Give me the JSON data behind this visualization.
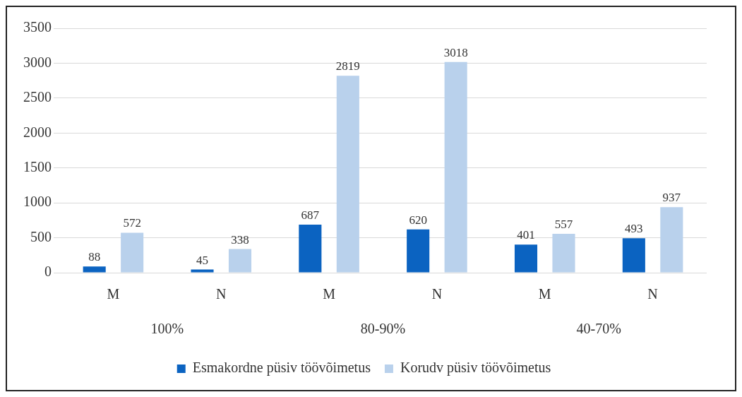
{
  "chart_data": {
    "type": "bar",
    "categories": [
      "M",
      "N",
      "M",
      "N",
      "M",
      "N"
    ],
    "series": [
      {
        "name": "Esmakordne püsiv töövõimetus",
        "color": "#0b63c1",
        "values": [
          88,
          45,
          687,
          620,
          401,
          493
        ]
      },
      {
        "name": "Korudv püsiv töövõimetus",
        "color": "#b9d1ec",
        "values": [
          572,
          338,
          2819,
          3018,
          557,
          937
        ]
      }
    ],
    "annotations": [
      "100%",
      "80-90%",
      "40-70%"
    ],
    "ylim": [
      0,
      3500
    ],
    "yticks": [
      0,
      500,
      1000,
      1500,
      2000,
      2500,
      3000,
      3500
    ],
    "grid": "y",
    "legend": "bottom",
    "data_labels": true
  }
}
